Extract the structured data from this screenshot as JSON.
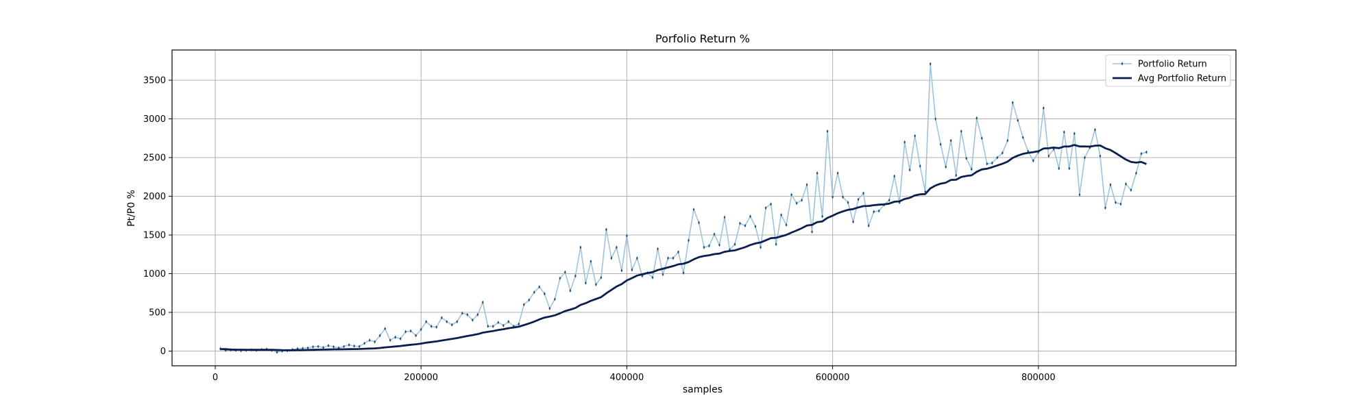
{
  "chart_data": {
    "type": "line",
    "title": "Porfolio Return %",
    "xlabel": "samples",
    "ylabel": "Pt/P0 %",
    "xlim": [
      -42000,
      992000
    ],
    "ylim": [
      -190,
      3890
    ],
    "xticks": [
      0,
      200000,
      400000,
      600000,
      800000
    ],
    "xtick_labels": [
      "0",
      "200000",
      "400000",
      "600000",
      "800000"
    ],
    "yticks": [
      0,
      500,
      1000,
      1500,
      2000,
      2500,
      3000,
      3500
    ],
    "ytick_labels": [
      "0",
      "500",
      "1000",
      "1500",
      "2000",
      "2500",
      "3000",
      "3500"
    ],
    "grid": true,
    "legend_position": "upper right",
    "series": [
      {
        "name": "Portfolio Return",
        "style": "line-with-markers",
        "line_color": "#9fc3dc",
        "marker_color": "#1f4e79",
        "x_start": 5000,
        "x_step": 5000,
        "values": [
          30,
          10,
          15,
          10,
          5,
          10,
          15,
          10,
          20,
          25,
          10,
          -15,
          0,
          5,
          20,
          30,
          35,
          40,
          55,
          60,
          45,
          70,
          55,
          40,
          60,
          80,
          65,
          60,
          100,
          140,
          120,
          200,
          290,
          140,
          180,
          160,
          250,
          260,
          200,
          280,
          380,
          320,
          310,
          430,
          380,
          340,
          380,
          490,
          470,
          400,
          470,
          630,
          320,
          320,
          370,
          330,
          380,
          320,
          350,
          600,
          660,
          760,
          830,
          740,
          550,
          670,
          940,
          1020,
          780,
          970,
          1340,
          880,
          1160,
          860,
          950,
          1570,
          1200,
          1340,
          1040,
          1490,
          1050,
          1200,
          970,
          1010,
          950,
          1320,
          990,
          1200,
          1200,
          1280,
          1010,
          1430,
          1830,
          1660,
          1340,
          1360,
          1510,
          1370,
          1730,
          1310,
          1380,
          1650,
          1620,
          1740,
          1610,
          1340,
          1850,
          1900,
          1380,
          1760,
          1630,
          2020,
          1910,
          1950,
          2150,
          1540,
          2300,
          1740,
          2840,
          1990,
          2300,
          1990,
          1920,
          1670,
          1960,
          2040,
          1620,
          1800,
          1810,
          1890,
          1950,
          2260,
          1920,
          2700,
          2340,
          2780,
          2390,
          2060,
          3710,
          3000,
          2670,
          2380,
          2720,
          2270,
          2840,
          2490,
          2350,
          3010,
          2750,
          2420,
          2430,
          2500,
          2560,
          2720,
          3210,
          2980,
          2760,
          2580,
          2460,
          2570,
          3140,
          2520,
          2610,
          2360,
          2830,
          2360,
          2810,
          2020,
          2500,
          2630,
          2860,
          2520,
          1850,
          2150,
          1920,
          1900,
          2160,
          2080,
          2300,
          2550,
          2570
        ]
      },
      {
        "name": "Avg Portfolio Return",
        "style": "line",
        "line_color": "#0a1f4d",
        "x_start": 5000,
        "x_step": 5000,
        "values": [
          25,
          25,
          20,
          18,
          18,
          17,
          17,
          16,
          16,
          17,
          16,
          14,
          12,
          11,
          11,
          12,
          13,
          14,
          16,
          18,
          19,
          21,
          22,
          22,
          23,
          25,
          26,
          27,
          30,
          33,
          35,
          40,
          48,
          53,
          60,
          66,
          74,
          82,
          88,
          97,
          108,
          117,
          125,
          137,
          147,
          157,
          168,
          182,
          195,
          206,
          219,
          238,
          249,
          259,
          272,
          283,
          296,
          305,
          315,
          336,
          357,
          381,
          409,
          433,
          446,
          462,
          488,
          517,
          536,
          557,
          596,
          619,
          649,
          673,
          697,
          746,
          791,
          834,
          866,
          913,
          943,
          976,
          992,
          1008,
          1020,
          1047,
          1063,
          1081,
          1099,
          1121,
          1129,
          1151,
          1185,
          1214,
          1228,
          1238,
          1253,
          1260,
          1283,
          1293,
          1301,
          1322,
          1343,
          1370,
          1391,
          1404,
          1431,
          1459,
          1464,
          1483,
          1501,
          1531,
          1558,
          1588,
          1622,
          1631,
          1666,
          1676,
          1722,
          1749,
          1781,
          1805,
          1825,
          1835,
          1856,
          1873,
          1876,
          1885,
          1892,
          1895,
          1906,
          1930,
          1935,
          1965,
          1980,
          2012,
          2025,
          2029,
          2102,
          2139,
          2163,
          2176,
          2211,
          2214,
          2249,
          2262,
          2271,
          2316,
          2347,
          2356,
          2376,
          2398,
          2420,
          2447,
          2496,
          2525,
          2548,
          2562,
          2570,
          2582,
          2617,
          2621,
          2630,
          2622,
          2643,
          2644,
          2663,
          2644,
          2644,
          2642,
          2654,
          2656,
          2621,
          2599,
          2559,
          2516,
          2475,
          2444,
          2435,
          2444,
          2416
        ]
      }
    ]
  }
}
